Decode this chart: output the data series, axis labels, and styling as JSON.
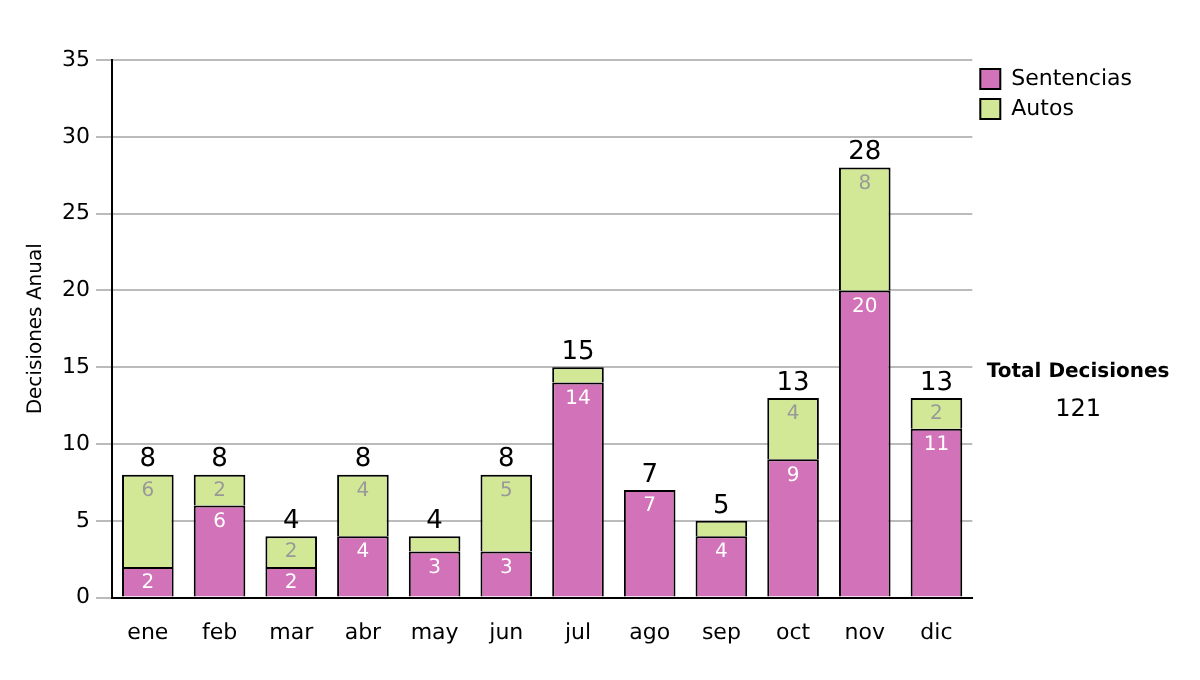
{
  "chart_data": {
    "type": "bar",
    "ylabel": "Decisiones Anual",
    "stacked": true,
    "categories": [
      "ene",
      "feb",
      "mar",
      "abr",
      "may",
      "jun",
      "jul",
      "ago",
      "sep",
      "oct",
      "nov",
      "dic"
    ],
    "series": [
      {
        "name": "Sentencias",
        "color": "#d272b8",
        "values": [
          2,
          6,
          2,
          4,
          3,
          3,
          14,
          7,
          4,
          9,
          20,
          11
        ],
        "value_labels": [
          "2",
          "6",
          "2",
          "4",
          "3",
          "3",
          "14",
          "7",
          "4",
          "9",
          "20",
          "11"
        ]
      },
      {
        "name": "Autos",
        "color": "#d2e896",
        "values": [
          6,
          2,
          2,
          4,
          1,
          5,
          1,
          0,
          1,
          4,
          8,
          2
        ],
        "value_labels": [
          "6",
          "2",
          "2",
          "4",
          null,
          "5",
          null,
          null,
          null,
          "4",
          "8",
          "2"
        ]
      }
    ],
    "totals": [
      "8",
      "8",
      "4",
      "8",
      "4",
      "8",
      "15",
      "7",
      "5",
      "13",
      "28",
      "13"
    ],
    "ylim": [
      0,
      35
    ],
    "yticks": [
      0,
      5,
      10,
      15,
      20,
      25,
      30,
      35
    ],
    "grid": "y",
    "legend": "right",
    "annotations": [
      "Total Decisiones",
      "121"
    ]
  }
}
